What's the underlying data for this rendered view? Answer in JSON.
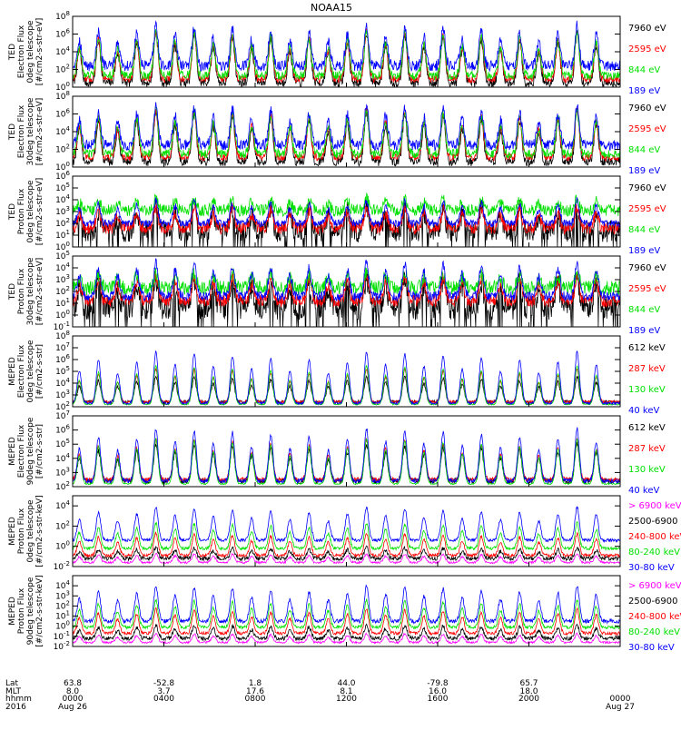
{
  "title": "NOAA15",
  "chart_data": [
    {
      "type": "line",
      "ylabel": [
        "TED",
        "Electron Flux",
        "0deg telescope",
        "[#/cm2-s-str-eV]"
      ],
      "yscale": "log",
      "ylim_exp": [
        0,
        8
      ],
      "tick_exps": [
        0,
        2,
        4,
        6,
        8
      ],
      "series": [
        {
          "name": "7960 eV",
          "color": "#000000",
          "base_exp": 0.5,
          "noise": 0.5,
          "spike": 5.2
        },
        {
          "name": "2595 eV",
          "color": "#ff0000",
          "base_exp": 0.9,
          "noise": 0.4,
          "spike": 5.0
        },
        {
          "name": "844 eV",
          "color": "#00e000",
          "base_exp": 1.3,
          "noise": 0.5,
          "spike": 4.6
        },
        {
          "name": "189 eV",
          "color": "#0000ff",
          "base_exp": 2.4,
          "noise": 0.6,
          "spike": 4.2
        }
      ]
    },
    {
      "type": "line",
      "ylabel": [
        "TED",
        "Electron Flux",
        "30deg telescope",
        "[#/cm2-s-str-eV]"
      ],
      "yscale": "log",
      "ylim_exp": [
        0,
        8
      ],
      "tick_exps": [
        0,
        2,
        4,
        6,
        8
      ],
      "series": [
        {
          "name": "7960 eV",
          "color": "#000000",
          "base_exp": 0.6,
          "noise": 0.5,
          "spike": 5.2
        },
        {
          "name": "2595 eV",
          "color": "#ff0000",
          "base_exp": 1.1,
          "noise": 0.4,
          "spike": 5.0
        },
        {
          "name": "844 eV",
          "color": "#00e000",
          "base_exp": 1.5,
          "noise": 0.5,
          "spike": 4.6
        },
        {
          "name": "189 eV",
          "color": "#0000ff",
          "base_exp": 2.5,
          "noise": 0.6,
          "spike": 4.0
        }
      ]
    },
    {
      "type": "line",
      "ylabel": [
        "TED",
        "Proton Flux",
        "0deg telescope",
        "[#/cm2-s-str-eV]"
      ],
      "yscale": "log",
      "ylim_exp": [
        0,
        6
      ],
      "tick_exps": [
        0,
        1,
        2,
        3,
        4,
        5,
        6
      ],
      "series": [
        {
          "name": "7960 eV",
          "color": "#000000",
          "base_exp": 1.3,
          "noise": 0.9,
          "spike": 2.0
        },
        {
          "name": "2595 eV",
          "color": "#ff0000",
          "base_exp": 1.6,
          "noise": 0.5,
          "spike": 1.6
        },
        {
          "name": "844 eV",
          "color": "#00e000",
          "base_exp": 3.1,
          "noise": 0.5,
          "spike": 0.9
        },
        {
          "name": "189 eV",
          "color": "#0000ff",
          "base_exp": 2.0,
          "noise": 0.3,
          "spike": 1.8
        }
      ]
    },
    {
      "type": "line",
      "ylabel": [
        "TED",
        "Proton Flux",
        "30deg telescope",
        "[#/cm2-s-str-eV]"
      ],
      "yscale": "log",
      "ylim_exp": [
        -1,
        5
      ],
      "tick_exps": [
        -1,
        0,
        1,
        2,
        3,
        4,
        5
      ],
      "series": [
        {
          "name": "7960 eV",
          "color": "#000000",
          "base_exp": 0.6,
          "noise": 1.0,
          "spike": 2.4
        },
        {
          "name": "2595 eV",
          "color": "#ff0000",
          "base_exp": 1.2,
          "noise": 0.5,
          "spike": 2.0
        },
        {
          "name": "844 eV",
          "color": "#00e000",
          "base_exp": 2.3,
          "noise": 0.6,
          "spike": 1.2
        },
        {
          "name": "189 eV",
          "color": "#0000ff",
          "base_exp": 1.6,
          "noise": 0.4,
          "spike": 2.6
        }
      ]
    },
    {
      "type": "line",
      "ylabel": [
        "MEPED",
        "Electron Flux",
        "0deg telescope",
        "[#/cm2-s-str]"
      ],
      "yscale": "log",
      "ylim_exp": [
        2,
        8
      ],
      "tick_exps": [
        2,
        3,
        4,
        5,
        6,
        7,
        8
      ],
      "series": [
        {
          "name": "612 keV",
          "color": "#000000",
          "base_exp": 2.4,
          "noise": 0.15,
          "spike": 2.0
        },
        {
          "name": "287 keV",
          "color": "#ff0000",
          "base_exp": 2.4,
          "noise": 0.12,
          "spike": 2.6
        },
        {
          "name": "130 keV",
          "color": "#00e000",
          "base_exp": 2.2,
          "noise": 0.05,
          "spike": 3.0
        },
        {
          "name": "40 keV",
          "color": "#0000ff",
          "base_exp": 2.3,
          "noise": 0.1,
          "spike": 4.0
        }
      ]
    },
    {
      "type": "line",
      "ylabel": [
        "MEPED",
        "Electron Flux",
        "90deg telescope",
        "[#/cm2-s-str]"
      ],
      "yscale": "log",
      "ylim_exp": [
        2,
        7
      ],
      "tick_exps": [
        2,
        3,
        4,
        5,
        6,
        7
      ],
      "series": [
        {
          "name": "612 keV",
          "color": "#000000",
          "base_exp": 2.4,
          "noise": 0.2,
          "spike": 2.4
        },
        {
          "name": "287 keV",
          "color": "#ff0000",
          "base_exp": 2.5,
          "noise": 0.15,
          "spike": 2.6
        },
        {
          "name": "130 keV",
          "color": "#00e000",
          "base_exp": 2.2,
          "noise": 0.05,
          "spike": 2.9
        },
        {
          "name": "40 keV",
          "color": "#0000ff",
          "base_exp": 2.4,
          "noise": 0.15,
          "spike": 3.4
        }
      ]
    },
    {
      "type": "line",
      "ylabel": [
        "MEPED",
        "Proton Flux",
        "0deg telescope",
        "[#/cm2-s-str-keV]"
      ],
      "yscale": "log",
      "ylim_exp": [
        -2,
        5
      ],
      "tick_exps": [
        -2,
        0,
        2,
        4
      ],
      "series": [
        {
          "name": "> 6900 keV",
          "color": "#ff00ff",
          "base_exp": -1.6,
          "noise": 0.1,
          "spike": 0.8
        },
        {
          "name": "2500-6900",
          "color": "#000000",
          "base_exp": -1.2,
          "noise": 0.2,
          "spike": 1.0
        },
        {
          "name": "240-800 keV",
          "color": "#ff0000",
          "base_exp": -0.9,
          "noise": 0.15,
          "spike": 2.0
        },
        {
          "name": "80-240 keV",
          "color": "#00e000",
          "base_exp": -0.2,
          "noise": 0.15,
          "spike": 2.3
        },
        {
          "name": "30-80 keV",
          "color": "#0000ff",
          "base_exp": 0.6,
          "noise": 0.15,
          "spike": 3.0
        }
      ]
    },
    {
      "type": "line",
      "ylabel": [
        "MEPED",
        "Proton Flux",
        "90deg telescope",
        "[#/cm2-s-str-keV]"
      ],
      "yscale": "log",
      "ylim_exp": [
        -2,
        5
      ],
      "tick_exps": [
        -2,
        -1,
        0,
        1,
        2,
        3,
        4
      ],
      "series": [
        {
          "name": "> 6900 keV",
          "color": "#ff00ff",
          "base_exp": -1.6,
          "noise": 0.1,
          "spike": 0.8
        },
        {
          "name": "2500-6900",
          "color": "#000000",
          "base_exp": -1.2,
          "noise": 0.2,
          "spike": 1.2
        },
        {
          "name": "240-800 keV",
          "color": "#ff0000",
          "base_exp": -0.7,
          "noise": 0.15,
          "spike": 2.2
        },
        {
          "name": "80-240 keV",
          "color": "#00e000",
          "base_exp": -0.1,
          "noise": 0.15,
          "spike": 2.5
        },
        {
          "name": "30-80 keV",
          "color": "#0000ff",
          "base_exp": 0.5,
          "noise": 0.2,
          "spike": 3.2
        }
      ]
    }
  ],
  "x_axis": {
    "row_labels": [
      "Lat",
      "MLT",
      "hhmm",
      "2016"
    ],
    "ticks": [
      {
        "lat": "63.8",
        "mlt": "8.0",
        "hhmm": "0000",
        "date": "Aug 26"
      },
      {
        "lat": "-52.8",
        "mlt": "3.7",
        "hhmm": "0400",
        "date": ""
      },
      {
        "lat": "1.8",
        "mlt": "17.6",
        "hhmm": "0800",
        "date": ""
      },
      {
        "lat": "44.0",
        "mlt": "8.1",
        "hhmm": "1200",
        "date": ""
      },
      {
        "lat": "-79.8",
        "mlt": "16.0",
        "hhmm": "1600",
        "date": ""
      },
      {
        "lat": "65.7",
        "mlt": "18.0",
        "hhmm": "2000",
        "date": ""
      },
      {
        "lat": "",
        "mlt": "",
        "hhmm": "0000",
        "date": "Aug 27"
      }
    ]
  }
}
